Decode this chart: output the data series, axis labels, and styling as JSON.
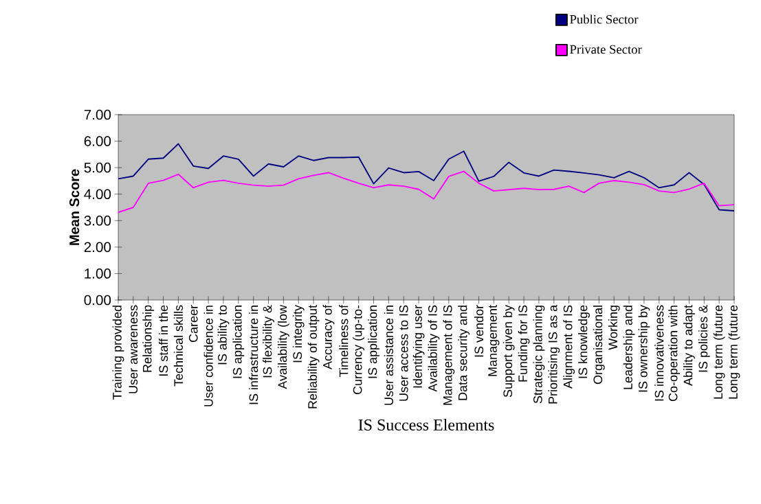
{
  "chart_data": {
    "type": "line",
    "xlabel": "IS Success Elements",
    "ylabel": "Mean Score",
    "categories": [
      "Training provided",
      "User awareness",
      "Relationship",
      "IS staff in the",
      "Technical skills",
      "Career",
      "User confidence in",
      "IS ability to",
      "IS application",
      "IS infrastructure in",
      "IS flexibility &",
      "Availability (low",
      "IS integrity",
      "Reliability of output",
      "Accuracy of",
      "Timeliness of",
      "Currency (up-to-",
      "IS application",
      "User assistance in",
      "User access to IS",
      "Identifying user",
      "Availability of IS",
      "Management of IS",
      "Data security and",
      "IS vendor",
      "Management",
      "Support given by",
      "Funding for IS",
      "Strategic planning",
      "Prioritising IS as a",
      "Alignment of IS",
      "IS knowledge",
      "Organisational",
      "Working",
      "Leadership and",
      "IS ownership by",
      "IS innovativeness",
      "Co-operation with",
      "Ability to adapt",
      "IS policies &",
      "Long term (future",
      "Long term (future"
    ],
    "series": [
      {
        "name": "Public Sector",
        "color": "#000080",
        "values": [
          4.58,
          4.68,
          5.32,
          5.36,
          5.9,
          5.06,
          4.97,
          5.44,
          5.32,
          4.68,
          5.14,
          5.03,
          5.44,
          5.27,
          5.38,
          5.38,
          5.4,
          4.39,
          4.99,
          4.81,
          4.85,
          4.51,
          5.32,
          5.62,
          4.49,
          4.67,
          5.2,
          4.8,
          4.68,
          4.91,
          4.86,
          4.8,
          4.73,
          4.62,
          4.86,
          4.62,
          4.24,
          4.35,
          4.81,
          4.36,
          3.41,
          3.37
        ]
      },
      {
        "name": "Private Sector",
        "color": "#ff00ff",
        "values": [
          3.31,
          3.5,
          4.41,
          4.52,
          4.75,
          4.24,
          4.45,
          4.52,
          4.41,
          4.34,
          4.3,
          4.34,
          4.58,
          4.71,
          4.81,
          4.6,
          4.41,
          4.24,
          4.35,
          4.3,
          4.18,
          3.82,
          4.67,
          4.86,
          4.41,
          4.12,
          4.17,
          4.22,
          4.17,
          4.18,
          4.3,
          4.06,
          4.41,
          4.51,
          4.45,
          4.36,
          4.12,
          4.06,
          4.19,
          4.41,
          3.56,
          3.6
        ]
      }
    ],
    "ylim": [
      0,
      7
    ],
    "yticks": [
      {
        "value": 0,
        "label": "0.00"
      },
      {
        "value": 1,
        "label": "1.00"
      },
      {
        "value": 2,
        "label": "2.00"
      },
      {
        "value": 3,
        "label": "3.00"
      },
      {
        "value": 4,
        "label": "4.00"
      },
      {
        "value": 5,
        "label": "5.00"
      },
      {
        "value": 6,
        "label": "6.00"
      },
      {
        "value": 7,
        "label": "7.00"
      }
    ],
    "legend": "top right"
  }
}
